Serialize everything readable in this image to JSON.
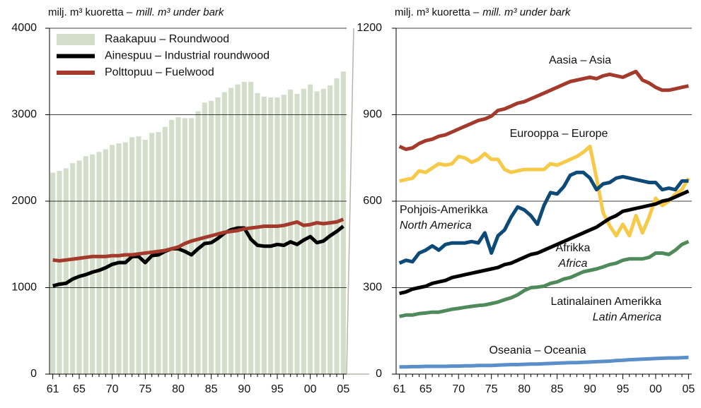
{
  "chart_data": [
    {
      "type": "bar",
      "ylabel": [
        "milj. m³ kuoretta –",
        "mill. m³ under bark"
      ],
      "categories": [
        "61",
        null,
        null,
        null,
        "65",
        null,
        null,
        null,
        null,
        "70",
        null,
        null,
        null,
        null,
        "75",
        null,
        null,
        null,
        null,
        "80",
        null,
        null,
        null,
        null,
        "85",
        null,
        null,
        null,
        null,
        "90",
        null,
        null,
        null,
        null,
        "95",
        null,
        null,
        null,
        null,
        "00",
        null,
        null,
        null,
        null,
        "05"
      ],
      "ylim": [
        0,
        4000
      ],
      "yticks": [
        0,
        1000,
        2000,
        3000,
        4000
      ],
      "grid": true,
      "legend": "upper left",
      "series": [
        {
          "name": "Raakapuu – Roundwood",
          "type": "bar",
          "color": "#d2dec9",
          "values": [
            2330,
            2350,
            2380,
            2440,
            2470,
            2520,
            2540,
            2570,
            2600,
            2650,
            2670,
            2680,
            2740,
            2750,
            2710,
            2790,
            2800,
            2860,
            2940,
            2970,
            2960,
            2960,
            3040,
            3140,
            3160,
            3200,
            3260,
            3310,
            3350,
            3380,
            3380,
            3250,
            3210,
            3200,
            3200,
            3230,
            3290,
            3240,
            3300,
            3350,
            3270,
            3300,
            3340,
            3420,
            3500
          ]
        },
        {
          "name": "Ainespuu – Industrial roundwood",
          "type": "line",
          "color": "#000000",
          "values": [
            1020,
            1040,
            1050,
            1100,
            1130,
            1150,
            1180,
            1200,
            1230,
            1270,
            1290,
            1290,
            1360,
            1360,
            1290,
            1370,
            1380,
            1420,
            1450,
            1450,
            1420,
            1380,
            1450,
            1510,
            1520,
            1570,
            1630,
            1670,
            1690,
            1690,
            1560,
            1490,
            1480,
            1480,
            1500,
            1490,
            1530,
            1500,
            1550,
            1590,
            1520,
            1540,
            1600,
            1650,
            1710
          ]
        },
        {
          "name": "Polttopuu – Fuelwood",
          "type": "line",
          "color": "#a33a2c",
          "values": [
            1320,
            1310,
            1320,
            1330,
            1340,
            1350,
            1360,
            1360,
            1360,
            1370,
            1370,
            1380,
            1380,
            1390,
            1400,
            1410,
            1420,
            1430,
            1450,
            1470,
            1510,
            1540,
            1560,
            1580,
            1600,
            1620,
            1640,
            1650,
            1660,
            1680,
            1690,
            1700,
            1710,
            1710,
            1710,
            1720,
            1740,
            1760,
            1720,
            1730,
            1750,
            1740,
            1750,
            1760,
            1790
          ]
        }
      ]
    },
    {
      "type": "line",
      "ylabel": [
        "milj. m³ kuoretta –",
        "mill. m³ under bark"
      ],
      "categories": [
        "61",
        null,
        null,
        null,
        "65",
        null,
        null,
        null,
        null,
        "70",
        null,
        null,
        null,
        null,
        "75",
        null,
        null,
        null,
        null,
        "80",
        null,
        null,
        null,
        null,
        "85",
        null,
        null,
        null,
        null,
        "90",
        null,
        null,
        null,
        null,
        "95",
        null,
        null,
        null,
        null,
        "00",
        null,
        null,
        null,
        null,
        "05"
      ],
      "ylim": [
        0,
        1200
      ],
      "yticks": [
        0,
        300,
        600,
        900,
        1200
      ],
      "grid": true,
      "series": [
        {
          "name": "Aasia – Asia",
          "color": "#a33a2c",
          "values": [
            790,
            780,
            785,
            800,
            810,
            815,
            825,
            830,
            840,
            850,
            860,
            870,
            880,
            885,
            895,
            915,
            920,
            930,
            940,
            945,
            955,
            965,
            975,
            985,
            995,
            1005,
            1015,
            1020,
            1025,
            1030,
            1025,
            1035,
            1040,
            1035,
            1030,
            1040,
            1050,
            1020,
            1010,
            995,
            985,
            985,
            990,
            995,
            1000
          ]
        },
        {
          "name": "Eurooppa – Europe",
          "color": "#f7c948",
          "values": [
            670,
            675,
            680,
            705,
            700,
            715,
            730,
            725,
            730,
            755,
            750,
            735,
            745,
            765,
            745,
            745,
            710,
            700,
            705,
            710,
            710,
            710,
            710,
            730,
            725,
            735,
            745,
            755,
            770,
            790,
            680,
            560,
            515,
            480,
            520,
            480,
            550,
            490,
            545,
            610,
            585,
            600,
            625,
            640,
            680
          ]
        },
        {
          "name": "Pohjois-Amerikka",
          "name_en": "North America",
          "color": "#0d4a78",
          "values": [
            385,
            395,
            390,
            420,
            430,
            445,
            430,
            450,
            455,
            455,
            455,
            460,
            455,
            490,
            420,
            480,
            500,
            545,
            580,
            570,
            550,
            520,
            585,
            630,
            625,
            650,
            690,
            700,
            700,
            680,
            640,
            660,
            665,
            680,
            685,
            680,
            675,
            670,
            665,
            665,
            640,
            645,
            640,
            670,
            670
          ]
        },
        {
          "name": "Afrikka",
          "name_en": "Africa",
          "color": "#000000",
          "values": [
            280,
            285,
            295,
            300,
            305,
            315,
            320,
            325,
            335,
            340,
            345,
            350,
            355,
            360,
            365,
            370,
            380,
            385,
            395,
            405,
            415,
            420,
            430,
            440,
            450,
            460,
            470,
            480,
            490,
            500,
            510,
            525,
            540,
            550,
            565,
            570,
            575,
            580,
            585,
            590,
            600,
            605,
            615,
            625,
            635
          ]
        },
        {
          "name": "Latinalainen Amerikka",
          "name_en": "Latin America",
          "color": "#4f8a5a",
          "values": [
            200,
            205,
            205,
            210,
            212,
            215,
            215,
            220,
            225,
            228,
            232,
            235,
            238,
            240,
            245,
            250,
            258,
            265,
            275,
            290,
            300,
            302,
            305,
            315,
            320,
            330,
            335,
            345,
            355,
            360,
            365,
            372,
            380,
            385,
            395,
            400,
            400,
            400,
            405,
            420,
            420,
            415,
            430,
            450,
            460
          ]
        },
        {
          "name": "Oseania – Oceania",
          "color": "#5b8fc9",
          "values": [
            25,
            25,
            26,
            26,
            27,
            27,
            27,
            27,
            28,
            28,
            29,
            29,
            30,
            30,
            30,
            31,
            32,
            33,
            33,
            34,
            35,
            35,
            36,
            37,
            38,
            39,
            40,
            40,
            41,
            42,
            43,
            44,
            45,
            47,
            48,
            50,
            51,
            52,
            53,
            54,
            55,
            56,
            56,
            57,
            58
          ]
        }
      ]
    }
  ]
}
